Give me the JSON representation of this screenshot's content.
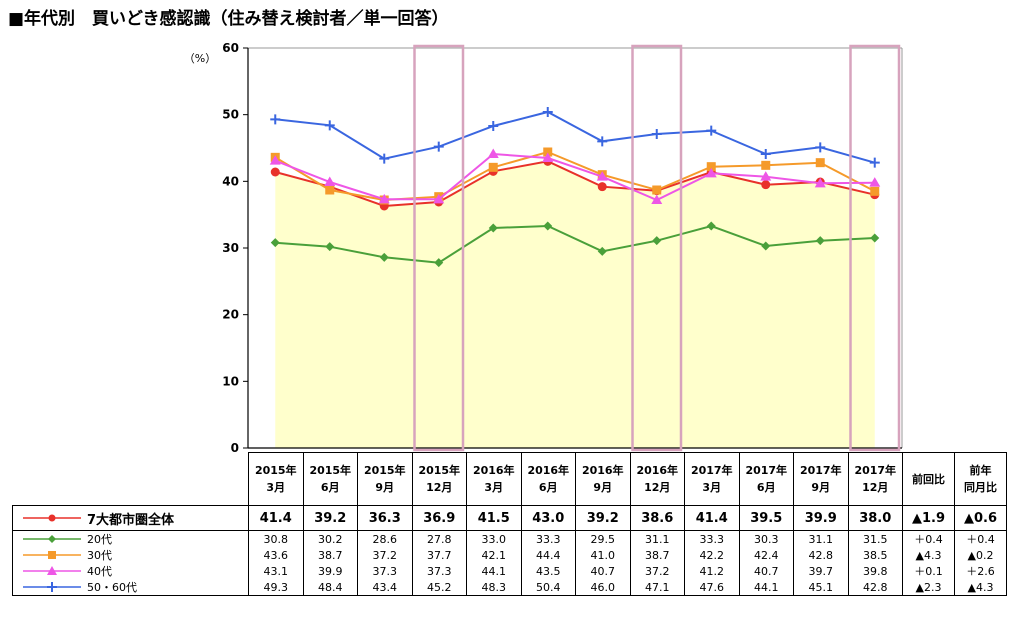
{
  "title": "■年代別　買いどき感認識（住み替え検討者／単一回答）",
  "chart_data": {
    "type": "line",
    "y_unit": "（%）",
    "ylim": [
      0,
      60
    ],
    "yticks": [
      0,
      10,
      20,
      30,
      40,
      50,
      60
    ],
    "categories": [
      [
        "2015年",
        "3月"
      ],
      [
        "2015年",
        "6月"
      ],
      [
        "2015年",
        "9月"
      ],
      [
        "2015年",
        "12月"
      ],
      [
        "2016年",
        "3月"
      ],
      [
        "2016年",
        "6月"
      ],
      [
        "2016年",
        "9月"
      ],
      [
        "2016年",
        "12月"
      ],
      [
        "2017年",
        "3月"
      ],
      [
        "2017年",
        "6月"
      ],
      [
        "2017年",
        "9月"
      ],
      [
        "2017年",
        "12月"
      ]
    ],
    "highlighted_categories": [
      3,
      7,
      11
    ],
    "area_series_index": 0,
    "series": [
      {
        "name": "7大都市圏全体",
        "values": [
          41.4,
          39.2,
          36.3,
          36.9,
          41.5,
          43.0,
          39.2,
          38.6,
          41.4,
          39.5,
          39.9,
          38.0
        ],
        "color": "#e8312a",
        "marker": "circle",
        "change_prev": "▲1.9",
        "change_year": "▲0.6"
      },
      {
        "name": "20代",
        "values": [
          30.8,
          30.2,
          28.6,
          27.8,
          33.0,
          33.3,
          29.5,
          31.1,
          33.3,
          30.3,
          31.1,
          31.5
        ],
        "color": "#4aa03a",
        "marker": "diamond",
        "change_prev": "＋0.4",
        "change_year": "＋0.4"
      },
      {
        "name": "30代",
        "values": [
          43.6,
          38.7,
          37.2,
          37.7,
          42.1,
          44.4,
          41.0,
          38.7,
          42.2,
          42.4,
          42.8,
          38.5
        ],
        "color": "#f59a2a",
        "marker": "square",
        "change_prev": "▲4.3",
        "change_year": "▲0.2"
      },
      {
        "name": "40代",
        "values": [
          43.1,
          39.9,
          37.3,
          37.3,
          44.1,
          43.5,
          40.7,
          37.2,
          41.2,
          40.7,
          39.7,
          39.8
        ],
        "color": "#ee56e6",
        "marker": "triangle",
        "change_prev": "＋0.1",
        "change_year": "＋2.6"
      },
      {
        "name": "50・60代",
        "values": [
          49.3,
          48.4,
          43.4,
          45.2,
          48.3,
          50.4,
          46.0,
          47.1,
          47.6,
          44.1,
          45.1,
          42.8
        ],
        "color": "#3a66e0",
        "marker": "plus",
        "change_prev": "▲2.3",
        "change_year": "▲4.3"
      }
    ],
    "extra_columns": [
      "前回比",
      [
        "前年",
        "同月比"
      ]
    ],
    "colors": {
      "area_fill": "#ffffcc",
      "highlight_box": "#d7a3bd",
      "axis": "#000000"
    }
  }
}
